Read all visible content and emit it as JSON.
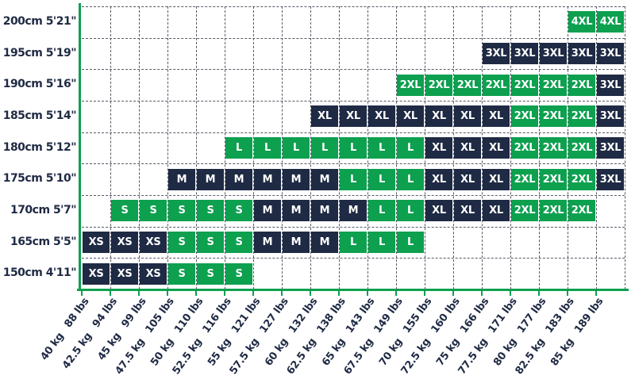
{
  "chart_data": {
    "type": "heatmap",
    "description": "Apparel size chart grid: body height rows vs body weight columns, each cell labeled with a garment size",
    "grid": "dashed",
    "legend": null,
    "colors": {
      "navy": "#1f2a44",
      "green": "#0ca04f",
      "axis": "#0ca04f",
      "grid_line": "#565b66",
      "text": "#1f2a44",
      "cell_text": "#ffffff"
    },
    "size_colors": {
      "XS": "navy",
      "S": "green",
      "M": "navy",
      "L": "green",
      "XL": "navy",
      "2XL": "green",
      "3XL": "navy",
      "4XL": "green"
    },
    "x_tick_labels": [
      {
        "kg": "40 kg",
        "lbs": "88 lbs"
      },
      {
        "kg": "42.5 kg",
        "lbs": "94 lbs"
      },
      {
        "kg": "45 kg",
        "lbs": "99 lbs"
      },
      {
        "kg": "47.5 kg",
        "lbs": "105 lbs"
      },
      {
        "kg": "50 kg",
        "lbs": "110 lbs"
      },
      {
        "kg": "52.5 kg",
        "lbs": "116 lbs"
      },
      {
        "kg": "55 kg",
        "lbs": "121 lbs"
      },
      {
        "kg": "57.5 kg",
        "lbs": "127 lbs"
      },
      {
        "kg": "60 kg",
        "lbs": "132 lbs"
      },
      {
        "kg": "62.5 kg",
        "lbs": "138 lbs"
      },
      {
        "kg": "65 kg",
        "lbs": "143 lbs"
      },
      {
        "kg": "67.5 kg",
        "lbs": "149 lbs"
      },
      {
        "kg": "70 kg",
        "lbs": "155 lbs"
      },
      {
        "kg": "72.5 kg",
        "lbs": "160 lbs"
      },
      {
        "kg": "75 kg",
        "lbs": "166 lbs"
      },
      {
        "kg": "77.5 kg",
        "lbs": "171 lbs"
      },
      {
        "kg": "80 kg",
        "lbs": "177 lbs"
      },
      {
        "kg": "82.5 kg",
        "lbs": "183 lbs"
      },
      {
        "kg": "85 kg",
        "lbs": "189 lbs"
      }
    ],
    "rows": [
      {
        "height": "200cm 5'21\"",
        "segments": [
          {
            "size": "4XL",
            "start": 18,
            "span": 2,
            "color": "green"
          }
        ]
      },
      {
        "height": "195cm 5'19\"",
        "segments": [
          {
            "size": "3XL",
            "start": 15,
            "span": 5,
            "color": "navy"
          }
        ]
      },
      {
        "height": "190cm 5'16\"",
        "segments": [
          {
            "size": "2XL",
            "start": 12,
            "span": 7,
            "color": "green"
          },
          {
            "size": "3XL",
            "start": 19,
            "span": 1,
            "color": "navy"
          }
        ]
      },
      {
        "height": "185cm 5'14\"",
        "segments": [
          {
            "size": "XL",
            "start": 9,
            "span": 7,
            "color": "navy"
          },
          {
            "size": "2XL",
            "start": 16,
            "span": 3,
            "color": "green"
          },
          {
            "size": "3XL",
            "start": 19,
            "span": 1,
            "color": "navy"
          }
        ]
      },
      {
        "height": "180cm 5'12\"",
        "segments": [
          {
            "size": "L",
            "start": 6,
            "span": 7,
            "color": "green"
          },
          {
            "size": "XL",
            "start": 13,
            "span": 3,
            "color": "navy"
          },
          {
            "size": "2XL",
            "start": 16,
            "span": 3,
            "color": "green"
          },
          {
            "size": "3XL",
            "start": 19,
            "span": 1,
            "color": "navy"
          }
        ]
      },
      {
        "height": "175cm 5'10\"",
        "segments": [
          {
            "size": "M",
            "start": 4,
            "span": 6,
            "color": "navy"
          },
          {
            "size": "L",
            "start": 10,
            "span": 3,
            "color": "green"
          },
          {
            "size": "XL",
            "start": 13,
            "span": 3,
            "color": "navy"
          },
          {
            "size": "2XL",
            "start": 16,
            "span": 3,
            "color": "green"
          },
          {
            "size": "3XL",
            "start": 19,
            "span": 1,
            "color": "navy"
          }
        ]
      },
      {
        "height": "170cm 5'7\"",
        "segments": [
          {
            "size": "S",
            "start": 2,
            "span": 5,
            "color": "green"
          },
          {
            "size": "M",
            "start": 7,
            "span": 4,
            "color": "navy"
          },
          {
            "size": "L",
            "start": 11,
            "span": 2,
            "color": "green"
          },
          {
            "size": "XL",
            "start": 13,
            "span": 3,
            "color": "navy"
          },
          {
            "size": "2XL",
            "start": 16,
            "span": 3,
            "color": "green"
          }
        ]
      },
      {
        "height": "165cm 5'5\"",
        "segments": [
          {
            "size": "XS",
            "start": 1,
            "span": 3,
            "color": "navy"
          },
          {
            "size": "S",
            "start": 4,
            "span": 3,
            "color": "green"
          },
          {
            "size": "M",
            "start": 7,
            "span": 3,
            "color": "navy"
          },
          {
            "size": "L",
            "start": 10,
            "span": 3,
            "color": "green"
          }
        ]
      },
      {
        "height": "150cm 4'11\"",
        "segments": [
          {
            "size": "XS",
            "start": 1,
            "span": 3,
            "color": "navy"
          },
          {
            "size": "S",
            "start": 4,
            "span": 3,
            "color": "green"
          }
        ]
      }
    ]
  }
}
